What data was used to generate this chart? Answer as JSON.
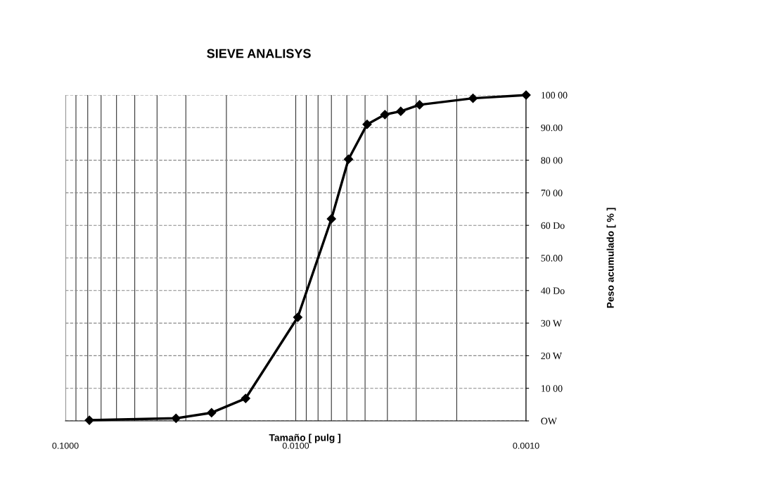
{
  "chart_data": {
    "type": "line",
    "title": "SIEVE ANALISYS",
    "xlabel": "Tamaño [ pulg ]",
    "ylabel": "Peso acumulado [ % ]",
    "x": [
      0.0787,
      0.0331,
      0.0232,
      0.0165,
      0.0098,
      0.007,
      0.0059,
      0.0049,
      0.0041,
      0.0035,
      0.0029,
      0.0017,
      0.001
    ],
    "series": [
      {
        "color": "#000000",
        "values": [
          0.2,
          0.8,
          2.5,
          6.9,
          31.8,
          62,
          80.3,
          91,
          94,
          95,
          97,
          99,
          100
        ]
      }
    ],
    "log": "x",
    "xlim": [
      0.1,
      0.001
    ],
    "xticks": [
      {
        "value": 0.1,
        "label": "0.1000"
      },
      {
        "value": 0.01,
        "label": "0.0100"
      },
      {
        "value": 0.001,
        "label": "0.0010"
      }
    ],
    "ylim": [
      0,
      100
    ],
    "yticks": [
      {
        "value": 0,
        "label": "OW"
      },
      {
        "value": 10,
        "label": "10 00"
      },
      {
        "value": 20,
        "label": "20 W"
      },
      {
        "value": 30,
        "label": "30 W"
      },
      {
        "value": 40,
        "label": "40 Do"
      },
      {
        "value": 50,
        "label": "50.00"
      },
      {
        "value": 60,
        "label": "60 Do"
      },
      {
        "value": 70,
        "label": "70 00"
      },
      {
        "value": 80,
        "label": "80 00"
      },
      {
        "value": 90,
        "label": "90.00"
      },
      {
        "value": 100,
        "label": "100 00"
      }
    ],
    "grid": true,
    "marker": "diamond",
    "line_style": "solid"
  }
}
